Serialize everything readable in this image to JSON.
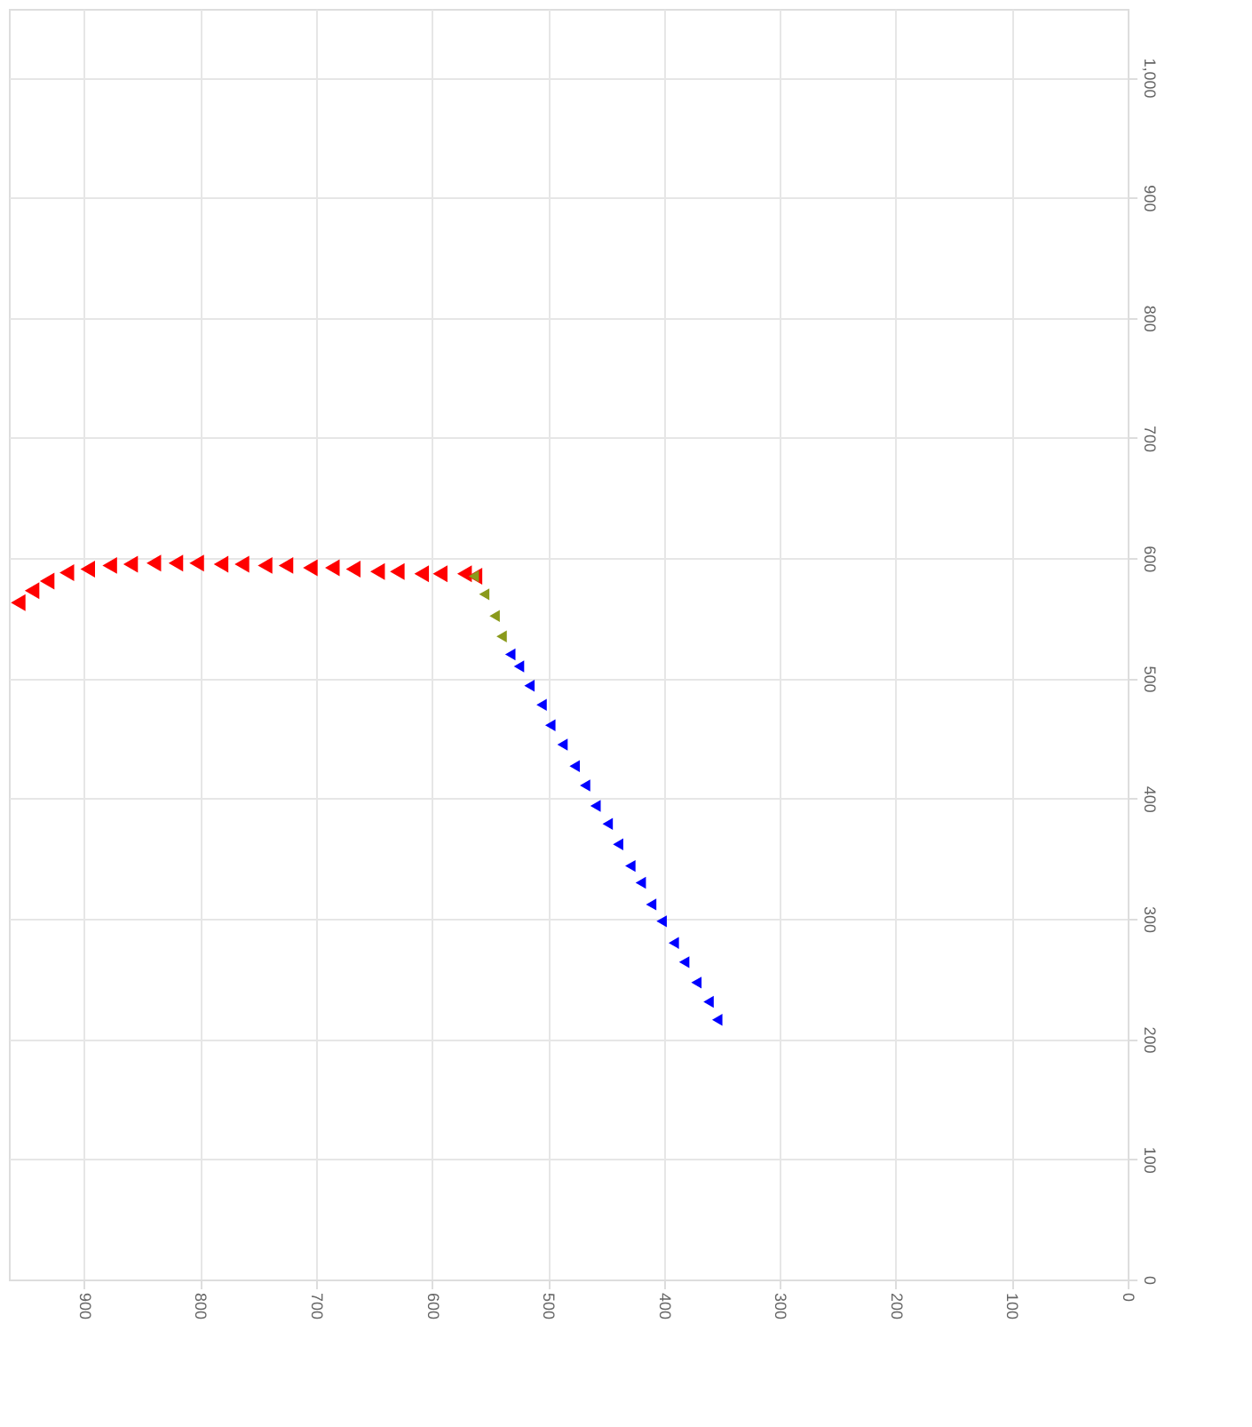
{
  "chart_data": {
    "type": "scatter",
    "xlim": [
      965,
      0
    ],
    "ylim": [
      0,
      1057
    ],
    "xticks": [
      0,
      100,
      200,
      300,
      400,
      500,
      600,
      700,
      800,
      900
    ],
    "yticks": [
      0,
      100,
      200,
      300,
      400,
      500,
      600,
      700,
      800,
      900,
      {
        "value": 1000,
        "label": "1,000"
      }
    ],
    "grid": true,
    "marker": "triangle",
    "legend": false,
    "series": [
      {
        "color": "#ff0000",
        "x": [
          957,
          945,
          932,
          915,
          897,
          878,
          860,
          840,
          821,
          803,
          782,
          764,
          744,
          726,
          705,
          686,
          668,
          647,
          630,
          609,
          593,
          572,
          563
        ],
        "values": [
          563,
          573,
          581,
          588,
          591,
          594,
          595,
          596,
          596,
          596,
          595,
          595,
          594,
          594,
          592,
          592,
          591,
          589,
          589,
          587,
          587,
          587,
          585
        ]
      },
      {
        "color": "#8a9a1b",
        "x": [
          564,
          555,
          546,
          540
        ],
        "values": [
          585,
          570,
          552,
          535
        ]
      },
      {
        "color": "#0000ff",
        "x": [
          532.5,
          525,
          516,
          505.5,
          498,
          487.5,
          477,
          468,
          459,
          448.5,
          439.5,
          429,
          420,
          411,
          402,
          391.5,
          382.5,
          372,
          361.5,
          354
        ],
        "values": [
          520,
          510,
          494,
          478,
          461,
          445,
          427,
          411,
          394,
          379,
          362,
          344,
          330,
          312,
          298,
          280,
          264,
          247,
          231,
          216
        ]
      }
    ]
  }
}
